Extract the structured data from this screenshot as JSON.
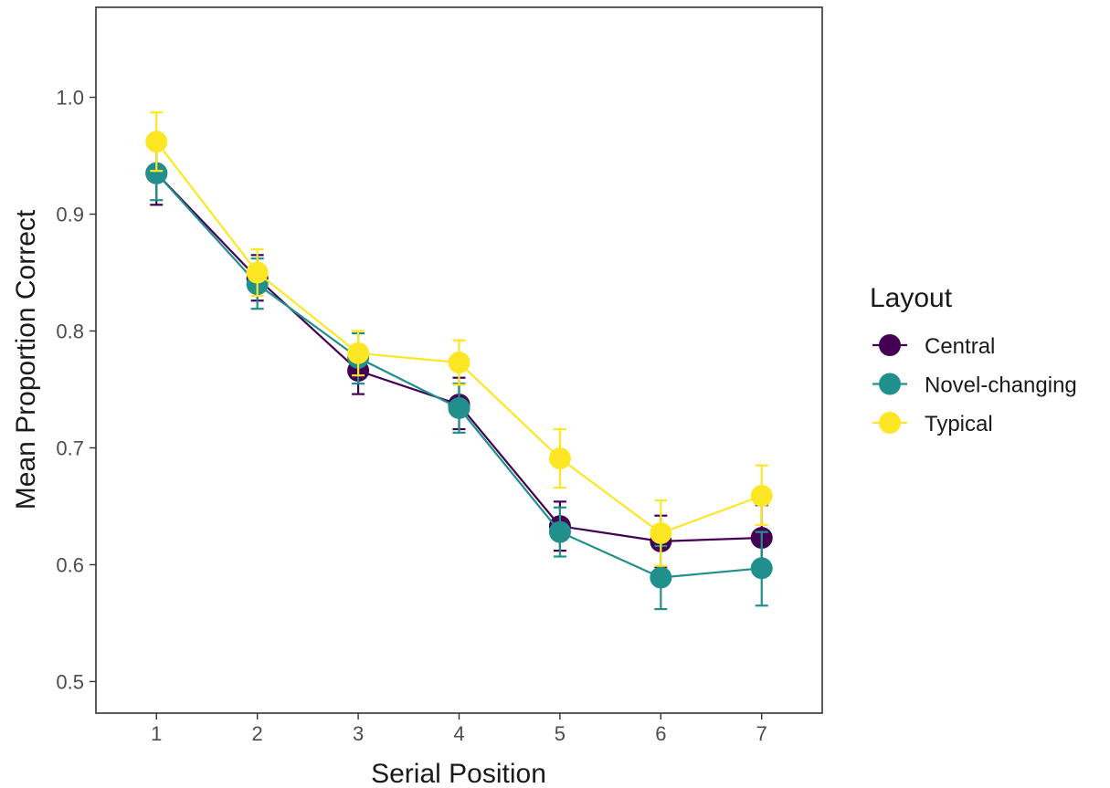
{
  "chart_data": {
    "type": "line",
    "xlabel": "Serial Position",
    "ylabel": "Mean Proportion Correct",
    "x": [
      1,
      2,
      3,
      4,
      5,
      6,
      7
    ],
    "x_tick_labels": [
      "1",
      "2",
      "3",
      "4",
      "5",
      "6",
      "7"
    ],
    "xlim": [
      0.4,
      7.6
    ],
    "ylim": [
      0.473,
      1.077
    ],
    "y_ticks": [
      0.5,
      0.6,
      0.7,
      0.8,
      0.9,
      1.0
    ],
    "y_tick_labels": [
      "0.5",
      "0.6",
      "0.7",
      "0.8",
      "0.9",
      "1.0"
    ],
    "grid": false,
    "legend": {
      "title": "Layout",
      "position": "right"
    },
    "series": [
      {
        "name": "Central",
        "color": "#440154",
        "values": [
          0.935,
          0.845,
          0.766,
          0.737,
          0.633,
          0.62,
          0.623
        ],
        "error_low": [
          0.908,
          0.826,
          0.746,
          0.716,
          0.612,
          0.598,
          0.597
        ],
        "error_high": [
          0.963,
          0.865,
          0.786,
          0.76,
          0.654,
          0.642,
          0.651
        ]
      },
      {
        "name": "Novel-changing",
        "color": "#21908C",
        "values": [
          0.935,
          0.84,
          0.777,
          0.734,
          0.628,
          0.589,
          0.597
        ],
        "error_low": [
          0.912,
          0.819,
          0.755,
          0.713,
          0.607,
          0.562,
          0.565
        ],
        "error_high": [
          0.958,
          0.862,
          0.798,
          0.755,
          0.649,
          0.616,
          0.628
        ]
      },
      {
        "name": "Typical",
        "color": "#FDE725",
        "values": [
          0.962,
          0.85,
          0.781,
          0.773,
          0.691,
          0.627,
          0.659
        ],
        "error_low": [
          0.937,
          0.83,
          0.762,
          0.754,
          0.666,
          0.599,
          0.634
        ],
        "error_high": [
          0.987,
          0.87,
          0.8,
          0.792,
          0.716,
          0.655,
          0.685
        ]
      }
    ]
  }
}
